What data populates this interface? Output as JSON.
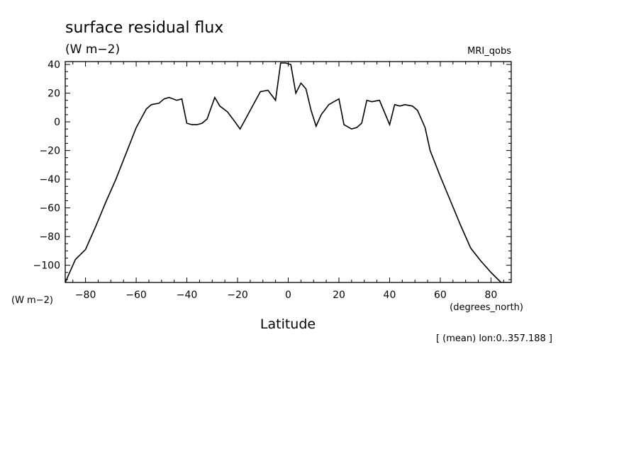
{
  "chart_data": {
    "type": "line",
    "title": "surface residual flux",
    "units": "(W m−2)",
    "dataset": "MRI_qobs",
    "y_units_label": "(W m−2)",
    "x_units_label": "(degrees_north)",
    "xlabel": "Latitude",
    "footnote": "[ (mean) lon:0..357.188 ]",
    "xlim": [
      -88,
      88
    ],
    "ylim": [
      -112,
      42
    ],
    "x_ticks": [
      -80,
      -60,
      -40,
      -20,
      0,
      20,
      40,
      60,
      80
    ],
    "y_ticks": [
      40,
      20,
      0,
      -20,
      -40,
      -60,
      -80,
      -100
    ],
    "x_tick_labels": [
      "−80",
      "−60",
      "−40",
      "−20",
      "0",
      "20",
      "40",
      "60",
      "80"
    ],
    "y_tick_labels": [
      "40",
      "20",
      "0",
      "−20",
      "−40",
      "−60",
      "−80",
      "−100"
    ],
    "grid": false,
    "series": [
      {
        "x": [
          -88,
          -84,
          -80,
          -76,
          -72,
          -68,
          -64,
          -60,
          -56,
          -54,
          -51,
          -49,
          -47,
          -44,
          -42,
          -40,
          -38,
          -36,
          -34,
          -32,
          -29,
          -27,
          -24,
          -21,
          -19,
          -15,
          -11,
          -8,
          -5,
          -3,
          -1,
          1,
          3,
          5,
          7,
          9,
          11,
          13,
          16,
          18,
          20,
          22,
          25,
          27,
          29,
          31,
          33,
          36,
          40,
          42,
          44,
          46,
          49,
          51,
          54,
          56,
          60,
          64,
          68,
          72,
          76,
          80,
          84,
          88
        ],
        "y": [
          -112,
          -96,
          -89,
          -73,
          -56,
          -40,
          -22,
          -4,
          9,
          12,
          13,
          16,
          17,
          15,
          16,
          -1,
          -2,
          -2,
          -1,
          2,
          17,
          11,
          7,
          0,
          -5,
          8,
          21,
          22,
          15,
          41,
          41,
          40,
          20,
          27,
          23,
          8,
          -3,
          5,
          12,
          14,
          16,
          -2,
          -5,
          -4,
          -1,
          15,
          14,
          15,
          -2,
          12,
          11,
          12,
          11,
          8,
          -4,
          -20,
          -38,
          -55,
          -72,
          -88,
          -97,
          -105,
          -112,
          -112
        ]
      }
    ]
  }
}
